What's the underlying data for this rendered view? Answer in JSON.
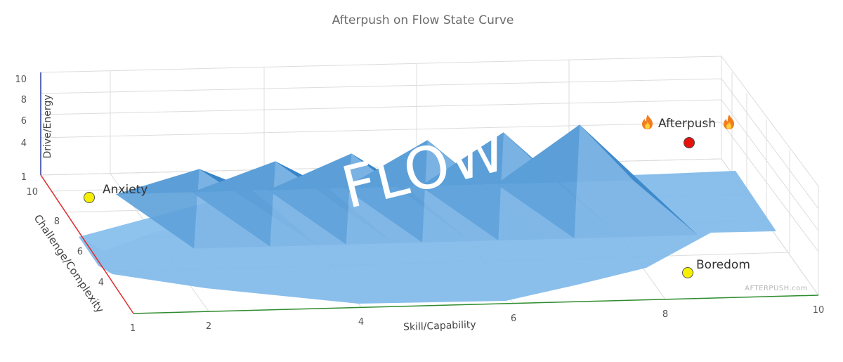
{
  "chart_data": {
    "type": "surface3d",
    "title": "Afterpush on Flow State Curve",
    "x_axis": {
      "label": "Skill/Capability",
      "range": [
        1,
        10
      ],
      "ticks": [
        "1",
        "2",
        "4",
        "6",
        "8",
        "10"
      ],
      "color": "#2e8b2e"
    },
    "y_axis": {
      "label": "Challenge/Complexity",
      "range": [
        1,
        10
      ],
      "ticks": [
        "4",
        "6",
        "8",
        "10"
      ],
      "color": "#e02b2b"
    },
    "z_axis": {
      "label": "Drive/Energy",
      "range": [
        1,
        10
      ],
      "ticks": [
        "1",
        "4",
        "6",
        "8",
        "10"
      ],
      "color": "#283c9c"
    },
    "surface": {
      "description": "Row of pyramid peaks along the diagonal where skill matches challenge",
      "base_level": 1,
      "peaks": [
        {
          "skill": 2.7,
          "challenge": 7.2,
          "energy": 5.0
        },
        {
          "skill": 3.7,
          "challenge": 7.2,
          "energy": 5.5
        },
        {
          "skill": 4.7,
          "challenge": 7.2,
          "energy": 6.0
        },
        {
          "skill": 5.7,
          "challenge": 7.2,
          "energy": 7.0
        },
        {
          "skill": 6.7,
          "challenge": 7.2,
          "energy": 7.5
        },
        {
          "skill": 7.7,
          "challenge": 7.2,
          "energy": 8.0
        }
      ],
      "color": "#2b7bc0"
    },
    "points": [
      {
        "name": "Anxiety",
        "color": "#f5f000"
      },
      {
        "name": "Boredom",
        "color": "#f5f000"
      },
      {
        "name": "Afterpush",
        "color": "#e8120c"
      }
    ],
    "overlay_text": "FLOW",
    "watermark": "AFTERPUSH.com"
  }
}
